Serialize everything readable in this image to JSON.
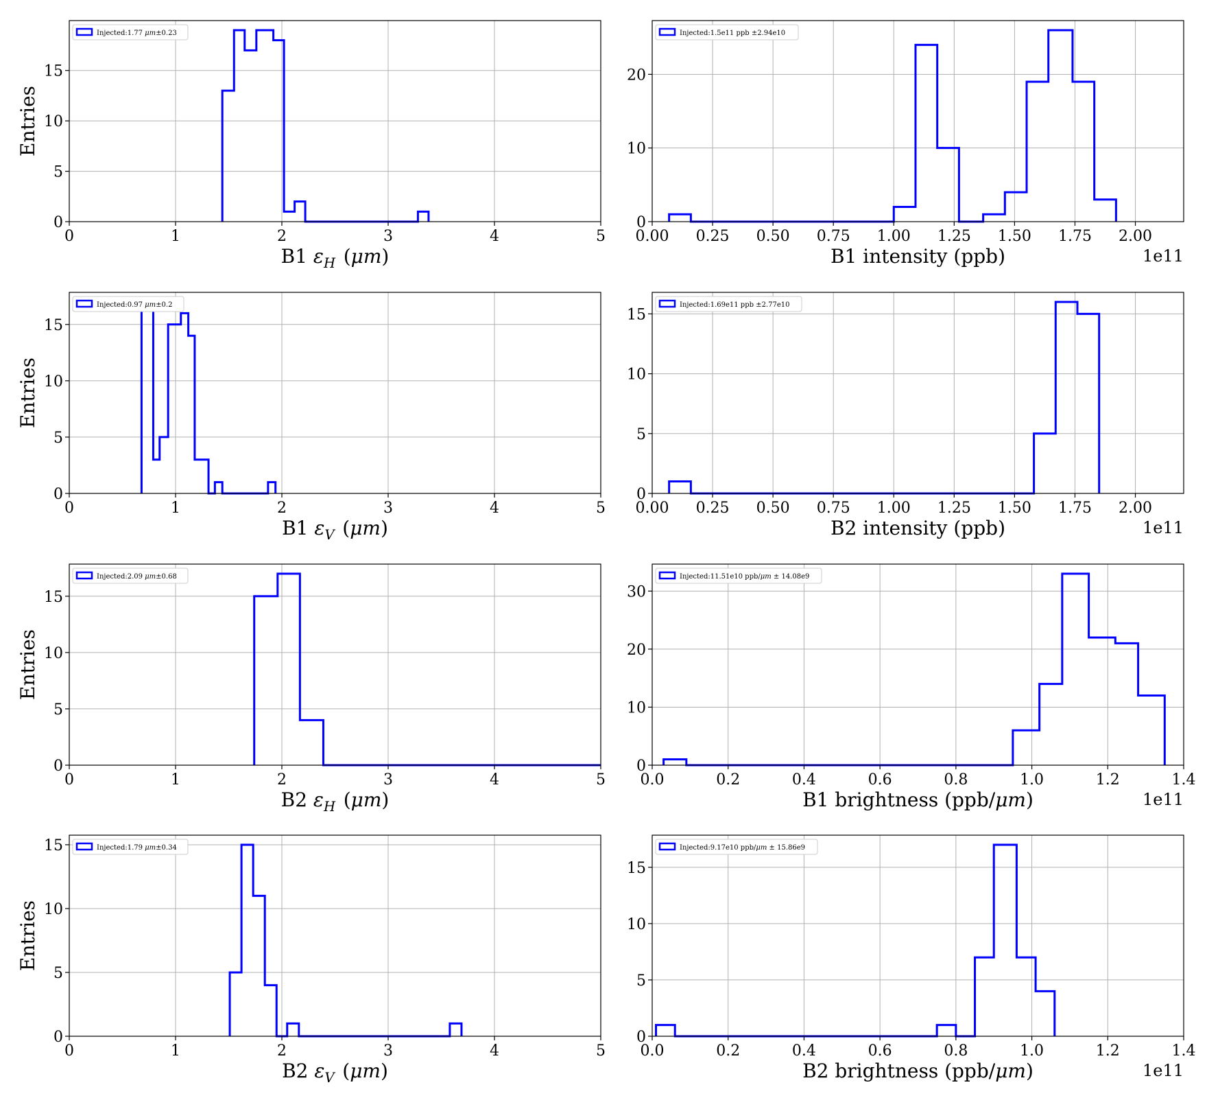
{
  "figure": {
    "colors": {
      "line": "#0000ff",
      "grid": "#b0b0b0",
      "axis": "#000000",
      "background": "#ffffff"
    }
  },
  "chart_data": [
    {
      "type": "histogram",
      "xlabel": "B1 εH (μm)",
      "ylabel": "Entries",
      "xlim": [
        0,
        5
      ],
      "ylim": [
        0,
        19.95
      ],
      "xticks": [
        0,
        1,
        2,
        3,
        4,
        5
      ],
      "xtick_labels": [
        "0",
        "1",
        "2",
        "3",
        "4",
        "5"
      ],
      "yticks": [
        0,
        5,
        10,
        15
      ],
      "legend": {
        "label": "Injected:1.77 μm±0.23",
        "position": "upper-left"
      },
      "bins": [
        [
          1.44,
          1.55,
          13
        ],
        [
          1.55,
          1.65,
          19
        ],
        [
          1.65,
          1.76,
          17
        ],
        [
          1.76,
          1.92,
          19
        ],
        [
          1.92,
          2.02,
          18
        ],
        [
          2.02,
          2.12,
          1
        ],
        [
          2.12,
          2.22,
          2
        ],
        [
          2.22,
          3.28,
          0
        ],
        [
          3.28,
          3.38,
          1
        ]
      ]
    },
    {
      "type": "histogram",
      "xlabel": "B1 intensity (ppb)",
      "ylabel": "",
      "xlim": [
        0,
        2.2
      ],
      "ylim": [
        0,
        27.3
      ],
      "xticks": [
        0,
        0.25,
        0.5,
        0.75,
        1.0,
        1.25,
        1.5,
        1.75,
        2.0
      ],
      "xtick_labels": [
        "0.00",
        "0.25",
        "0.50",
        "0.75",
        "1.00",
        "1.25",
        "1.50",
        "1.75",
        "2.00"
      ],
      "yticks": [
        0,
        10,
        20
      ],
      "offset_label": "1e11",
      "legend": {
        "label": "Injected:1.5e11 ppb ±2.94e10",
        "position": "upper-left"
      },
      "bins": [
        [
          0.07,
          0.16,
          1
        ],
        [
          0.16,
          1.0,
          0
        ],
        [
          1.0,
          1.09,
          2
        ],
        [
          1.09,
          1.18,
          24
        ],
        [
          1.18,
          1.27,
          10
        ],
        [
          1.27,
          1.37,
          0
        ],
        [
          1.37,
          1.46,
          1
        ],
        [
          1.46,
          1.55,
          4
        ],
        [
          1.55,
          1.64,
          19
        ],
        [
          1.64,
          1.74,
          26
        ],
        [
          1.74,
          1.83,
          19
        ],
        [
          1.83,
          1.92,
          3
        ]
      ]
    },
    {
      "type": "histogram",
      "xlabel": "B1 εV (μm)",
      "ylabel": "Entries",
      "xlim": [
        0,
        5
      ],
      "ylim": [
        0,
        17.85
      ],
      "xticks": [
        0,
        1,
        2,
        3,
        4,
        5
      ],
      "xtick_labels": [
        "0",
        "1",
        "2",
        "3",
        "4",
        "5"
      ],
      "yticks": [
        0,
        5,
        10,
        15
      ],
      "legend": {
        "label": "Injected:0.97 μm±0.2",
        "position": "upper-left"
      },
      "bins": [
        [
          0.68,
          0.79,
          17
        ],
        [
          0.79,
          0.85,
          3
        ],
        [
          0.85,
          0.93,
          5
        ],
        [
          0.93,
          1.05,
          15
        ],
        [
          1.05,
          1.12,
          16
        ],
        [
          1.12,
          1.18,
          14
        ],
        [
          1.18,
          1.31,
          3
        ],
        [
          1.31,
          1.37,
          0
        ],
        [
          1.37,
          1.44,
          1
        ],
        [
          1.44,
          1.87,
          0
        ],
        [
          1.87,
          1.94,
          1
        ]
      ]
    },
    {
      "type": "histogram",
      "xlabel": "B2 intensity (ppb)",
      "ylabel": "",
      "xlim": [
        0,
        2.2
      ],
      "ylim": [
        0,
        16.8
      ],
      "xticks": [
        0,
        0.25,
        0.5,
        0.75,
        1.0,
        1.25,
        1.5,
        1.75,
        2.0
      ],
      "xtick_labels": [
        "0.00",
        "0.25",
        "0.50",
        "0.75",
        "1.00",
        "1.25",
        "1.50",
        "1.75",
        "2.00"
      ],
      "yticks": [
        0,
        5,
        10,
        15
      ],
      "offset_label": "1e11",
      "legend": {
        "label": "Injected:1.69e11 ppb ±2.77e10",
        "position": "upper-left"
      },
      "bins": [
        [
          0.07,
          0.16,
          1
        ],
        [
          0.16,
          1.58,
          0
        ],
        [
          1.58,
          1.67,
          5
        ],
        [
          1.67,
          1.76,
          16
        ],
        [
          1.76,
          1.85,
          15
        ]
      ]
    },
    {
      "type": "histogram",
      "xlabel": "B2 εH (μm)",
      "ylabel": "Entries",
      "xlim": [
        0,
        5
      ],
      "ylim": [
        0,
        17.85
      ],
      "xticks": [
        0,
        1,
        2,
        3,
        4,
        5
      ],
      "xtick_labels": [
        "0",
        "1",
        "2",
        "3",
        "4",
        "5"
      ],
      "yticks": [
        0,
        5,
        10,
        15
      ],
      "legend": {
        "label": "Injected:2.09 μm±0.68",
        "position": "upper-left"
      },
      "bins": [
        [
          1.74,
          1.96,
          15
        ],
        [
          1.96,
          2.17,
          17
        ],
        [
          2.17,
          2.39,
          4
        ],
        [
          2.39,
          5.0,
          0
        ]
      ]
    },
    {
      "type": "histogram",
      "xlabel": "B1 brightness (ppb/μm)",
      "ylabel": "",
      "xlim": [
        0,
        1.4
      ],
      "ylim": [
        0,
        34.65
      ],
      "xticks": [
        0,
        0.2,
        0.4,
        0.6,
        0.8,
        1.0,
        1.2,
        1.4
      ],
      "xtick_labels": [
        "0.0",
        "0.2",
        "0.4",
        "0.6",
        "0.8",
        "1.0",
        "1.2",
        "1.4"
      ],
      "yticks": [
        0,
        10,
        20,
        30
      ],
      "offset_label": "1e11",
      "legend": {
        "label": "Injected:11.51e10 ppb/μm ± 14.08e9",
        "position": "upper-left"
      },
      "bins": [
        [
          0.03,
          0.09,
          1
        ],
        [
          0.09,
          0.95,
          0
        ],
        [
          0.95,
          1.02,
          6
        ],
        [
          1.02,
          1.08,
          14
        ],
        [
          1.08,
          1.15,
          33
        ],
        [
          1.15,
          1.22,
          22
        ],
        [
          1.22,
          1.28,
          21
        ],
        [
          1.28,
          1.35,
          12
        ]
      ]
    },
    {
      "type": "histogram",
      "xlabel": "B2 εV (μm)",
      "ylabel": "Entries",
      "xlim": [
        0,
        5
      ],
      "ylim": [
        0,
        15.75
      ],
      "xticks": [
        0,
        1,
        2,
        3,
        4,
        5
      ],
      "xtick_labels": [
        "0",
        "1",
        "2",
        "3",
        "4",
        "5"
      ],
      "yticks": [
        0,
        5,
        10,
        15
      ],
      "legend": {
        "label": "Injected:1.79 μm±0.34",
        "position": "upper-left"
      },
      "bins": [
        [
          1.51,
          1.62,
          5
        ],
        [
          1.62,
          1.73,
          15
        ],
        [
          1.73,
          1.84,
          11
        ],
        [
          1.84,
          1.95,
          4
        ],
        [
          1.95,
          2.05,
          0
        ],
        [
          2.05,
          2.16,
          1
        ],
        [
          2.16,
          3.58,
          0
        ],
        [
          3.58,
          3.69,
          1
        ]
      ]
    },
    {
      "type": "histogram",
      "xlabel": "B2 brightness (ppb/μm)",
      "ylabel": "",
      "xlim": [
        0,
        1.4
      ],
      "ylim": [
        0,
        17.85
      ],
      "xticks": [
        0,
        0.2,
        0.4,
        0.6,
        0.8,
        1.0,
        1.2,
        1.4
      ],
      "xtick_labels": [
        "0.0",
        "0.2",
        "0.4",
        "0.6",
        "0.8",
        "1.0",
        "1.2",
        "1.4"
      ],
      "yticks": [
        0,
        5,
        10,
        15
      ],
      "offset_label": "1e11",
      "legend": {
        "label": "Injected:9.17e10 ppb/μm ± 15.86e9",
        "position": "upper-left"
      },
      "bins": [
        [
          0.01,
          0.06,
          1
        ],
        [
          0.06,
          0.75,
          0
        ],
        [
          0.75,
          0.8,
          1
        ],
        [
          0.8,
          0.85,
          0
        ],
        [
          0.85,
          0.9,
          7
        ],
        [
          0.9,
          0.96,
          17
        ],
        [
          0.96,
          1.01,
          7
        ],
        [
          1.01,
          1.06,
          4
        ]
      ]
    }
  ]
}
